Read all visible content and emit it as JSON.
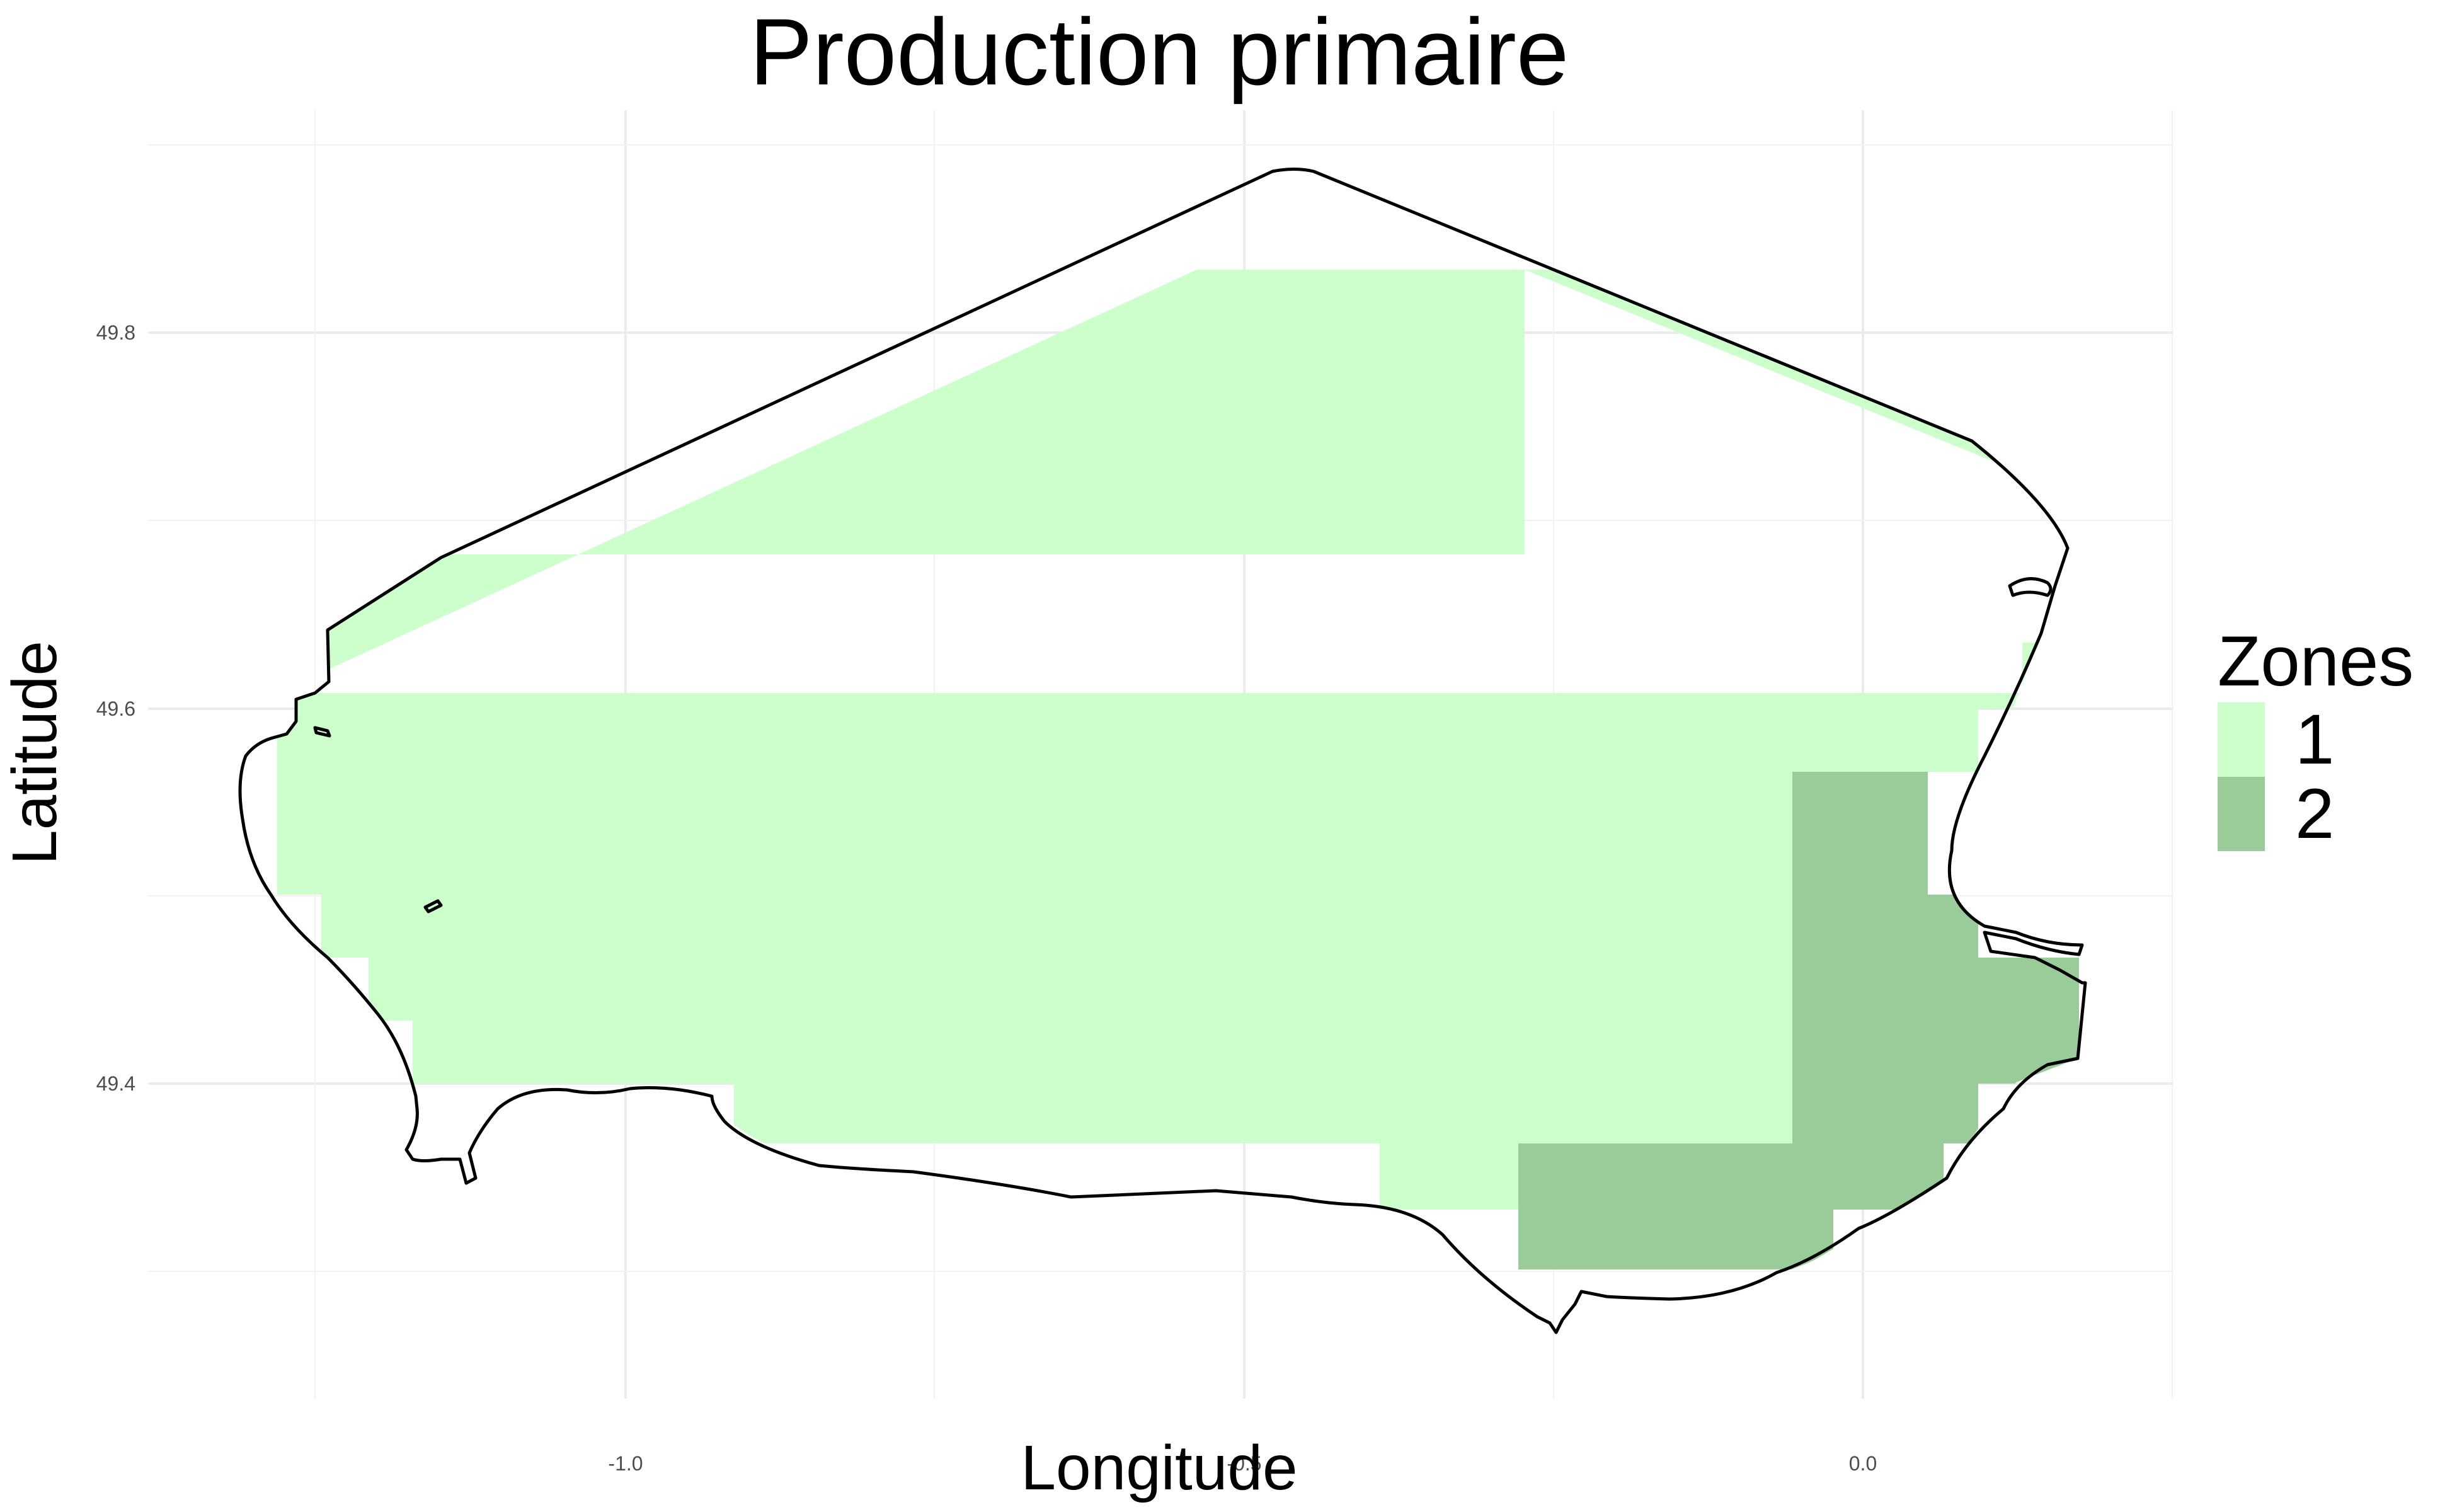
{
  "title": "Production primaire",
  "xlabel": "Longitude",
  "ylabel": "Latitude",
  "x_ticks": [
    "-1.0",
    "-0.5",
    "0.0"
  ],
  "y_ticks": [
    "49.4",
    "49.6",
    "49.8"
  ],
  "legend": {
    "title": "Zones",
    "items": [
      {
        "label": "1",
        "color": "#ccffcc"
      },
      {
        "label": "2",
        "color": "#99cc99"
      }
    ]
  },
  "chart_data": {
    "type": "heatmap",
    "title": "Production primaire",
    "xlabel": "Longitude",
    "ylabel": "Latitude",
    "xlim": [
      -1.37,
      0.25
    ],
    "ylim": [
      49.22,
      49.92
    ],
    "zones": [
      {
        "zone": "1",
        "color": "#ccffcc"
      },
      {
        "zone": "2",
        "color": "#99cc99"
      }
    ],
    "grid": true,
    "legend_position": "right"
  }
}
